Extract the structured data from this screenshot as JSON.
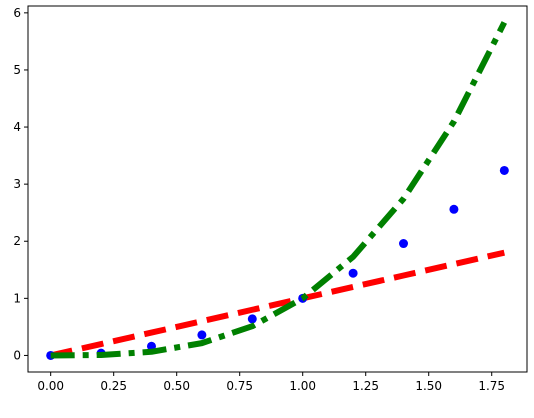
{
  "chart_data": {
    "type": "line",
    "title": "",
    "xlabel": "",
    "ylabel": "",
    "xlim": [
      -0.09,
      1.89
    ],
    "ylim": [
      -0.29,
      6.12
    ],
    "xticks": [
      0.0,
      0.25,
      0.5,
      0.75,
      1.0,
      1.25,
      1.5,
      1.75
    ],
    "xtick_labels": [
      "0.00",
      "0.25",
      "0.50",
      "0.75",
      "1.00",
      "1.25",
      "1.50",
      "1.75"
    ],
    "yticks": [
      0,
      1,
      2,
      3,
      4,
      5,
      6
    ],
    "ytick_labels": [
      "0",
      "1",
      "2",
      "3",
      "4",
      "5",
      "6"
    ],
    "grid": false,
    "legend": "none",
    "x": [
      0.0,
      0.2,
      0.4,
      0.6,
      0.8,
      1.0,
      1.2,
      1.4,
      1.6,
      1.8
    ],
    "series": [
      {
        "style": "dashed",
        "color": "#ff0000",
        "values": [
          0.0,
          0.2,
          0.4,
          0.6,
          0.8,
          1.0,
          1.2,
          1.4,
          1.6,
          1.8
        ]
      },
      {
        "style": "markers",
        "color": "#0000ff",
        "values": [
          0.0,
          0.04,
          0.16,
          0.36,
          0.64,
          1.0,
          1.44,
          1.96,
          2.56,
          3.24
        ]
      },
      {
        "style": "dash-dot",
        "color": "#008000",
        "values": [
          0.0,
          0.008,
          0.064,
          0.216,
          0.512,
          1.0,
          1.728,
          2.744,
          4.096,
          5.832
        ]
      }
    ]
  }
}
